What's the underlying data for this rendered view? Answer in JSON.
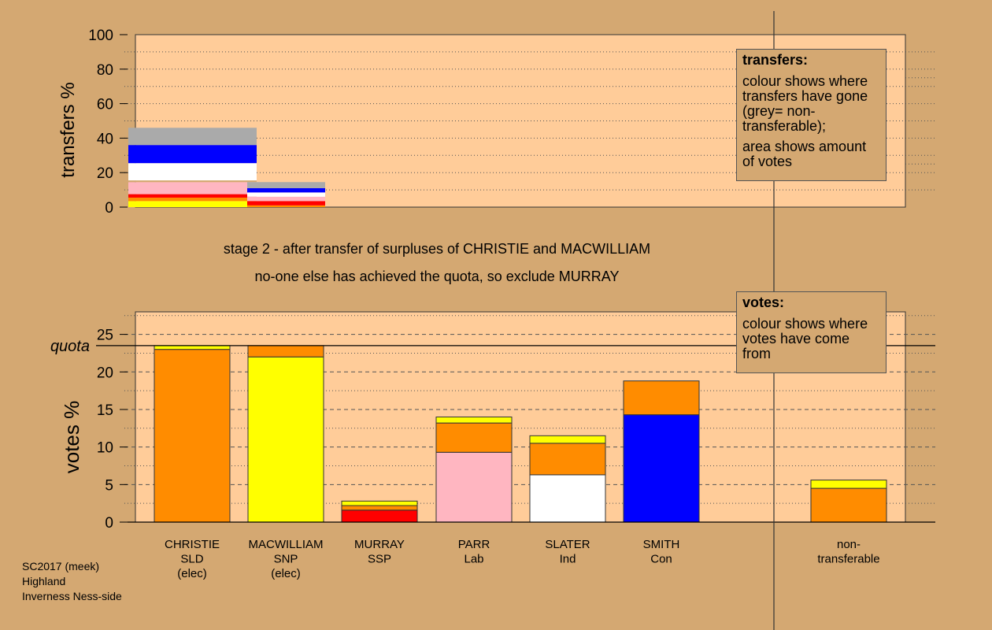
{
  "chart_data": [
    {
      "type": "bar",
      "panel": "transfers",
      "ylabel": "transfers %",
      "ylim": [
        0,
        100
      ],
      "yticks": [
        0,
        20,
        40,
        60,
        80,
        100
      ],
      "grid": "dotted horizontal lines",
      "bars": [
        {
          "name": "CHRISTIE",
          "segments": [
            {
              "color": "#ffff00",
              "value": 3.5
            },
            {
              "color": "#ff8c00",
              "value": 2.0
            },
            {
              "color": "#ff0000",
              "value": 2.0
            },
            {
              "color": "#ffb6c1",
              "value": 7.0
            },
            {
              "color": "#d4a872",
              "value": 1.0
            },
            {
              "color": "#ffffff",
              "value": 10.0
            },
            {
              "color": "#0000ff",
              "value": 10.5
            },
            {
              "color": "#aaaaaa",
              "value": 10.0
            }
          ]
        },
        {
          "name": "MACWILLIAM",
          "segments": [
            {
              "color": "#ff8c00",
              "value": 1.0
            },
            {
              "color": "#ff0000",
              "value": 2.5
            },
            {
              "color": "#ffb6c1",
              "value": 2.5
            },
            {
              "color": "#ffffff",
              "value": 2.5
            },
            {
              "color": "#0000ff",
              "value": 2.5
            },
            {
              "color": "#aaaaaa",
              "value": 3.5
            }
          ]
        }
      ]
    },
    {
      "type": "bar",
      "panel": "votes",
      "ylabel": "votes %",
      "ylim": [
        0,
        28
      ],
      "yticks": [
        0,
        5,
        10,
        15,
        20,
        25
      ],
      "quota": 23.5,
      "quota_label": "quota",
      "grid": "dashed and dotted horizontal lines",
      "categories": [
        {
          "lines": [
            "CHRISTIE",
            "SLD",
            "(elec)"
          ]
        },
        {
          "lines": [
            "MACWILLIAM",
            "SNP",
            "(elec)"
          ]
        },
        {
          "lines": [
            "MURRAY",
            "SSP"
          ]
        },
        {
          "lines": [
            "PARR",
            "Lab"
          ]
        },
        {
          "lines": [
            "SLATER",
            "Ind"
          ]
        },
        {
          "lines": [
            "SMITH",
            "Con"
          ]
        },
        {
          "lines": [
            "non-",
            "transferable"
          ]
        }
      ],
      "bars": [
        {
          "name": "CHRISTIE",
          "segments": [
            {
              "color": "#ff8c00",
              "value": 23.0
            },
            {
              "color": "#ffff00",
              "value": 0.5
            }
          ]
        },
        {
          "name": "MACWILLIAM",
          "segments": [
            {
              "color": "#ffff00",
              "value": 22.0
            },
            {
              "color": "#ff8c00",
              "value": 1.5
            }
          ]
        },
        {
          "name": "MURRAY",
          "segments": [
            {
              "color": "#ff0000",
              "value": 1.6
            },
            {
              "color": "#ff8c00",
              "value": 0.6
            },
            {
              "color": "#ffff00",
              "value": 0.6
            }
          ]
        },
        {
          "name": "PARR",
          "segments": [
            {
              "color": "#ffb6c1",
              "value": 9.3
            },
            {
              "color": "#ff8c00",
              "value": 3.9
            },
            {
              "color": "#ffff00",
              "value": 0.8
            }
          ]
        },
        {
          "name": "SLATER",
          "segments": [
            {
              "color": "#ffffff",
              "value": 6.3
            },
            {
              "color": "#ff8c00",
              "value": 4.2
            },
            {
              "color": "#ffff00",
              "value": 1.0
            }
          ]
        },
        {
          "name": "SMITH",
          "segments": [
            {
              "color": "#0000ff",
              "value": 14.3
            },
            {
              "color": "#ff8c00",
              "value": 4.5
            }
          ]
        },
        {
          "name": "non-transferable",
          "segments": [
            {
              "color": "#ff8c00",
              "value": 4.5
            },
            {
              "color": "#ffff00",
              "value": 1.1
            }
          ]
        }
      ]
    }
  ],
  "colors": {
    "background": "#d4a872",
    "plot_area": "#ffcc99"
  },
  "stage": {
    "line1": "stage 2 - after transfer of surpluses of CHRISTIE and MACWILLIAM",
    "line2": "no-one else has achieved the quota, so exclude MURRAY"
  },
  "legend_transfers": {
    "title": "transfers:",
    "p1": "colour shows where transfers have gone (grey= non-transferable);",
    "p2": "area shows amount of votes"
  },
  "legend_votes": {
    "title": "votes:",
    "p1": "colour shows where votes have come from"
  },
  "footer": {
    "line1": "SC2017 (meek)",
    "line2": "Highland",
    "line3": "Inverness Ness-side"
  }
}
